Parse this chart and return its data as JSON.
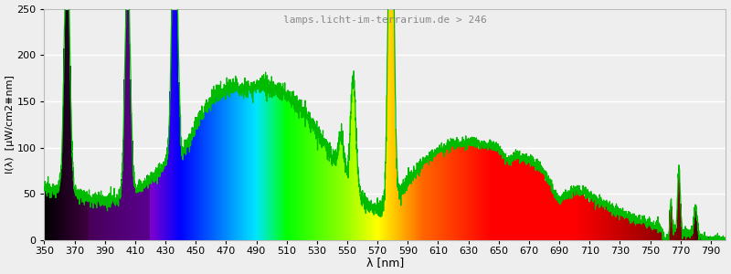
{
  "wavelength_min": 350,
  "wavelength_max": 800,
  "ylim": [
    0,
    250
  ],
  "yticks": [
    0,
    50,
    100,
    150,
    200,
    250
  ],
  "xlabel": "λ [nm]",
  "ylabel": "I(λ)  [μW/cm2⧻nm]",
  "title": "lamps.licht-im-terrarium.de > 246",
  "title_color": "#888888",
  "background_color": "#eeeeee",
  "plot_bg_color": "#eeeeee",
  "grid_color": "#ffffff",
  "xticks": [
    350,
    370,
    390,
    410,
    430,
    450,
    470,
    490,
    510,
    530,
    550,
    570,
    590,
    610,
    630,
    650,
    670,
    690,
    710,
    730,
    750,
    770,
    790
  ],
  "line_color": "#00bb00",
  "line_width": 0.9
}
